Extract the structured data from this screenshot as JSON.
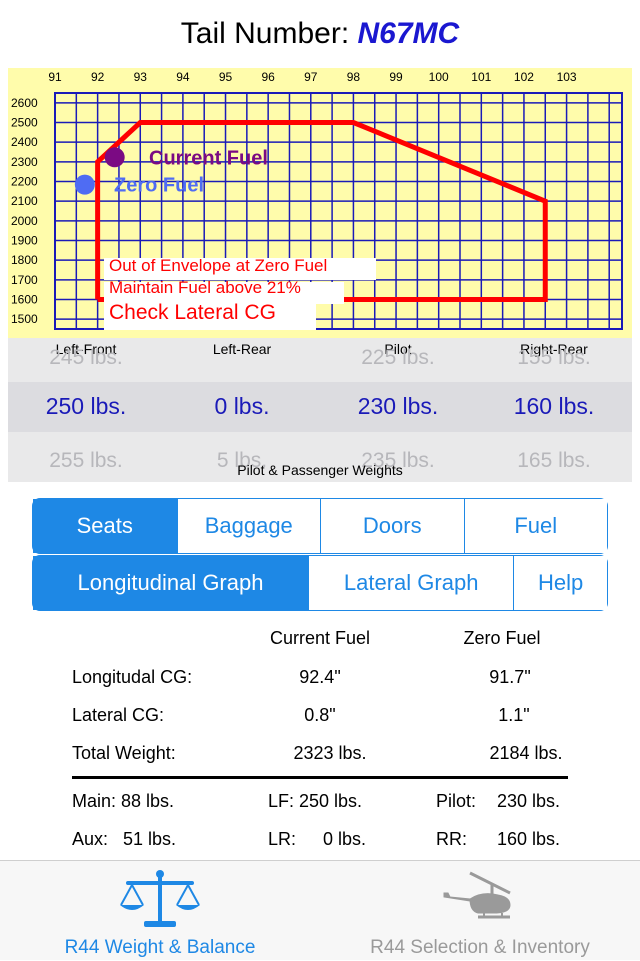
{
  "header": {
    "prefix": "Tail Number:",
    "tail_number": "N67MC"
  },
  "chart_data": {
    "type": "line",
    "title": "",
    "x_ticks": [
      91,
      92,
      93,
      94,
      95,
      96,
      97,
      98,
      99,
      100,
      101,
      102,
      103
    ],
    "y_ticks": [
      2600,
      2500,
      2400,
      2300,
      2200,
      2100,
      2000,
      1900,
      1800,
      1700,
      1600,
      1500
    ],
    "xlim": [
      91,
      104.3
    ],
    "ylim": [
      1450,
      2650
    ],
    "grid": true,
    "series": [
      {
        "name": "",
        "kind": "envelope",
        "x": [
          92,
          92,
          93,
          98,
          102.5,
          102.5,
          92
        ],
        "y": [
          1600,
          2300,
          2500,
          2500,
          2100,
          1600,
          1600
        ],
        "color": "#ff0000"
      }
    ],
    "points": [
      {
        "label": "Current Fuel",
        "x": 92.4,
        "y": 2323,
        "color": "#7b0a83"
      },
      {
        "label": "Zero Fuel",
        "x": 91.7,
        "y": 2184,
        "color": "#4f6cf3"
      }
    ],
    "warnings": [
      "Out of Envelope at Zero Fuel",
      "Maintain Fuel above 21%",
      "Check Lateral CG"
    ]
  },
  "picker": {
    "columns": [
      {
        "label": "Left-Front",
        "prev": "245 lbs.",
        "value": "250 lbs.",
        "next": "255 lbs."
      },
      {
        "label": "Left-Rear",
        "prev": "",
        "value": "0 lbs.",
        "next": "5 lbs."
      },
      {
        "label": "Pilot",
        "prev": "225 lbs.",
        "value": "230 lbs.",
        "next": "235 lbs."
      },
      {
        "label": "Right-Rear",
        "prev": "155 lbs.",
        "value": "160 lbs.",
        "next": "165 lbs."
      }
    ],
    "caption": "Pilot & Passenger Weights"
  },
  "segments1": {
    "items": [
      "Seats",
      "Baggage",
      "Doors",
      "Fuel"
    ],
    "active": "Seats"
  },
  "segments2": {
    "items": [
      "Longitudinal Graph",
      "Lateral Graph",
      "Help"
    ],
    "active": "Longitudinal Graph"
  },
  "results": {
    "head_current": "Current Fuel",
    "head_zero": "Zero Fuel",
    "rows": [
      {
        "label": "Longitudal CG:",
        "current": "92.4\"",
        "zero": "91.7\""
      },
      {
        "label": "Lateral CG:",
        "current": "0.8\"",
        "zero": "1.1\""
      },
      {
        "label": "Total Weight:",
        "current": "2323 lbs.",
        "zero": "2184 lbs."
      }
    ],
    "fuel": {
      "main": "Main: 88 lbs.",
      "aux": "Aux:   51 lbs."
    },
    "seats": {
      "lf_label": "LF:",
      "lf": "250 lbs.",
      "lr_label": "LR:",
      "lr": "0 lbs.",
      "pilot_label": "Pilot:",
      "pilot": "230 lbs.",
      "rr_label": "RR:",
      "rr": "160 lbs."
    }
  },
  "tabbar": {
    "tabs": [
      {
        "label": "R44 Weight & Balance",
        "icon": "scale-icon",
        "active": true,
        "color": "#1e88e5"
      },
      {
        "label": "R44 Selection & Inventory",
        "icon": "helicopter-icon",
        "active": false,
        "color": "#999999"
      }
    ]
  }
}
